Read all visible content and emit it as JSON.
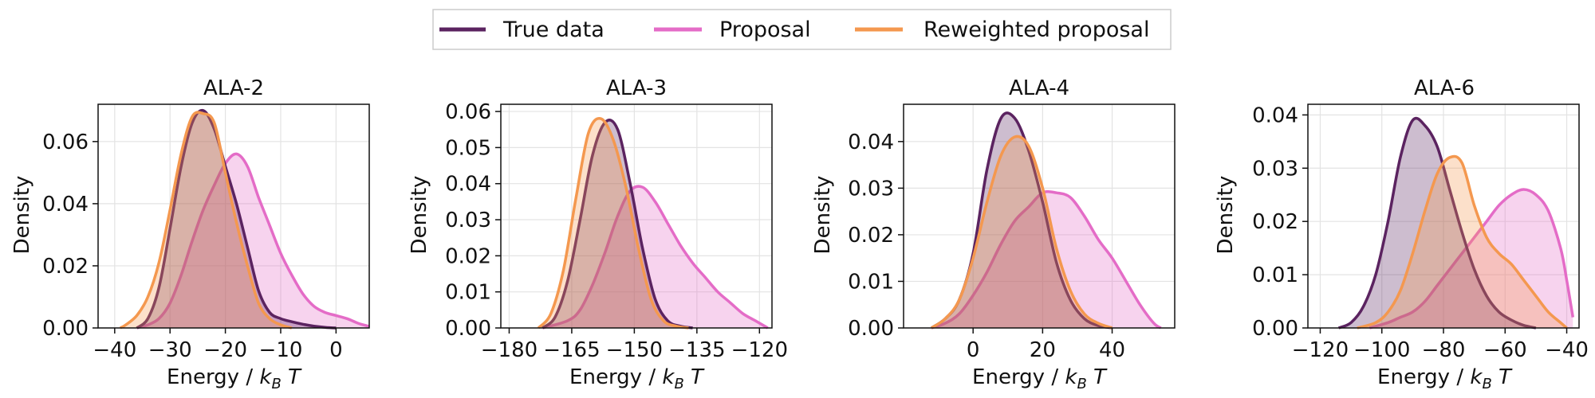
{
  "legend": {
    "entries": [
      {
        "label": "True data",
        "color": "#5b2360"
      },
      {
        "label": "Proposal",
        "color": "#e46cc7"
      },
      {
        "label": "Reweighted proposal",
        "color": "#f4984f"
      }
    ],
    "placement": "top-center"
  },
  "chart_data": [
    {
      "type": "area",
      "title": "ALA-2",
      "xlabel": "Energy / k_B T",
      "ylabel": "Density",
      "xlim": [
        -43,
        6
      ],
      "ylim": [
        0,
        0.072
      ],
      "xticks": [
        -40,
        -30,
        -20,
        -10,
        0
      ],
      "yticks": [
        0,
        0.02,
        0.04,
        0.06
      ],
      "ytick_labels": [
        "0.00",
        "0.02",
        "0.04",
        "0.06"
      ],
      "grid": true,
      "series": [
        {
          "name": "True data",
          "color": "#5b2360",
          "x": [
            -36,
            -34,
            -32,
            -30,
            -28,
            -26,
            -24,
            -22,
            -20,
            -18,
            -16,
            -14,
            -12,
            -10,
            -8,
            -6,
            -4,
            -2,
            0
          ],
          "y": [
            0.0,
            0.003,
            0.013,
            0.032,
            0.052,
            0.066,
            0.07,
            0.064,
            0.052,
            0.04,
            0.026,
            0.012,
            0.005,
            0.003,
            0.002,
            0.0012,
            0.0006,
            0.0002,
            0.0
          ]
        },
        {
          "name": "Proposal",
          "color": "#e46cc7",
          "x": [
            -36,
            -34,
            -32,
            -30,
            -28,
            -26,
            -24,
            -22,
            -20,
            -18,
            -16,
            -14,
            -12,
            -10,
            -8,
            -6,
            -4,
            -2,
            0,
            2,
            4,
            6
          ],
          "y": [
            0.0,
            0.001,
            0.003,
            0.008,
            0.017,
            0.028,
            0.038,
            0.046,
            0.053,
            0.056,
            0.052,
            0.042,
            0.033,
            0.024,
            0.017,
            0.011,
            0.007,
            0.005,
            0.004,
            0.003,
            0.0015,
            0.0005
          ]
        },
        {
          "name": "Reweighted proposal",
          "color": "#f4984f",
          "x": [
            -39,
            -38,
            -36,
            -34,
            -32,
            -30,
            -28,
            -26,
            -24,
            -22,
            -20,
            -18,
            -16,
            -14,
            -12,
            -10,
            -8
          ],
          "y": [
            0.0,
            0.001,
            0.004,
            0.01,
            0.021,
            0.038,
            0.056,
            0.068,
            0.069,
            0.066,
            0.05,
            0.034,
            0.02,
            0.008,
            0.003,
            0.001,
            0.0
          ]
        }
      ]
    },
    {
      "type": "area",
      "title": "ALA-3",
      "xlabel": "Energy / k_B T",
      "ylabel": "Density",
      "xlim": [
        -182,
        -117
      ],
      "ylim": [
        0,
        0.062
      ],
      "xticks": [
        -180,
        -165,
        -150,
        -135,
        -120
      ],
      "yticks": [
        0,
        0.01,
        0.02,
        0.03,
        0.04,
        0.05,
        0.06
      ],
      "ytick_labels": [
        "0.00",
        "0.01",
        "0.02",
        "0.03",
        "0.04",
        "0.05",
        "0.06"
      ],
      "grid": true,
      "series": [
        {
          "name": "True data",
          "color": "#5b2360",
          "x": [
            -172,
            -169,
            -166,
            -163,
            -160,
            -157,
            -154,
            -151,
            -148,
            -145,
            -142,
            -139,
            -136
          ],
          "y": [
            0.0,
            0.003,
            0.013,
            0.03,
            0.048,
            0.057,
            0.055,
            0.04,
            0.022,
            0.008,
            0.002,
            0.0005,
            0.0
          ]
        },
        {
          "name": "Proposal",
          "color": "#e46cc7",
          "x": [
            -172,
            -166,
            -163,
            -160,
            -157,
            -154,
            -151,
            -148,
            -145,
            -142,
            -139,
            -136,
            -133,
            -130,
            -127,
            -124,
            -121,
            -118
          ],
          "y": [
            0.0,
            0.002,
            0.005,
            0.012,
            0.021,
            0.031,
            0.038,
            0.039,
            0.035,
            0.029,
            0.023,
            0.018,
            0.014,
            0.01,
            0.007,
            0.004,
            0.002,
            0.0
          ]
        },
        {
          "name": "Reweighted proposal",
          "color": "#f4984f",
          "x": [
            -173,
            -170,
            -167,
            -164,
            -161,
            -158,
            -155,
            -152,
            -149,
            -146,
            -143,
            -140,
            -137
          ],
          "y": [
            0.0,
            0.004,
            0.016,
            0.036,
            0.054,
            0.058,
            0.052,
            0.039,
            0.022,
            0.008,
            0.002,
            0.0005,
            0.0
          ]
        }
      ]
    },
    {
      "type": "area",
      "title": "ALA-4",
      "xlabel": "Energy / k_B T",
      "ylabel": "Density",
      "xlim": [
        -20,
        58
      ],
      "ylim": [
        0,
        0.048
      ],
      "xticks": [
        0,
        20,
        40
      ],
      "yticks": [
        0,
        0.01,
        0.02,
        0.03,
        0.04
      ],
      "ytick_labels": [
        "0.00",
        "0.01",
        "0.02",
        "0.03",
        "0.04"
      ],
      "grid": true,
      "series": [
        {
          "name": "True data",
          "color": "#5b2360",
          "x": [
            -12,
            -8,
            -4,
            0,
            4,
            8,
            12,
            16,
            20,
            24,
            28,
            32,
            36,
            40
          ],
          "y": [
            0.0,
            0.002,
            0.006,
            0.016,
            0.034,
            0.045,
            0.045,
            0.038,
            0.027,
            0.014,
            0.006,
            0.002,
            0.0005,
            0.0
          ]
        },
        {
          "name": "Proposal",
          "color": "#e46cc7",
          "x": [
            -12,
            -8,
            -4,
            0,
            4,
            8,
            12,
            16,
            20,
            24,
            28,
            32,
            36,
            40,
            44,
            48,
            52,
            54
          ],
          "y": [
            0.0,
            0.001,
            0.003,
            0.007,
            0.012,
            0.018,
            0.023,
            0.026,
            0.029,
            0.029,
            0.028,
            0.024,
            0.019,
            0.015,
            0.01,
            0.005,
            0.001,
            0.0
          ]
        },
        {
          "name": "Reweighted proposal",
          "color": "#f4984f",
          "x": [
            -12,
            -8,
            -4,
            0,
            4,
            8,
            12,
            16,
            20,
            24,
            28,
            32,
            36,
            40
          ],
          "y": [
            0.0,
            0.002,
            0.006,
            0.015,
            0.027,
            0.037,
            0.041,
            0.039,
            0.03,
            0.017,
            0.008,
            0.003,
            0.001,
            0.0
          ]
        }
      ]
    },
    {
      "type": "area",
      "title": "ALA-6",
      "xlabel": "Energy / k_B T",
      "ylabel": "Density",
      "xlim": [
        -124,
        -36
      ],
      "ylim": [
        0,
        0.042
      ],
      "xticks": [
        -120,
        -100,
        -80,
        -60,
        -40
      ],
      "yticks": [
        0,
        0.01,
        0.02,
        0.03,
        0.04
      ],
      "ytick_labels": [
        "0.00",
        "0.01",
        "0.02",
        "0.03",
        "0.04"
      ],
      "grid": true,
      "series": [
        {
          "name": "True data",
          "color": "#5b2360",
          "x": [
            -114,
            -110,
            -106,
            -102,
            -98,
            -94,
            -90,
            -86,
            -82,
            -78,
            -74,
            -70,
            -66,
            -62,
            -58,
            -54,
            -50
          ],
          "y": [
            0.0,
            0.001,
            0.004,
            0.01,
            0.02,
            0.032,
            0.039,
            0.038,
            0.034,
            0.026,
            0.018,
            0.011,
            0.006,
            0.003,
            0.0015,
            0.0005,
            0.0
          ]
        },
        {
          "name": "Proposal",
          "color": "#e46cc7",
          "x": [
            -104,
            -98,
            -94,
            -90,
            -86,
            -82,
            -78,
            -74,
            -70,
            -66,
            -62,
            -58,
            -54,
            -50,
            -46,
            -42,
            -40,
            -38
          ],
          "y": [
            0.0,
            0.001,
            0.002,
            0.003,
            0.005,
            0.008,
            0.011,
            0.014,
            0.017,
            0.02,
            0.023,
            0.025,
            0.026,
            0.025,
            0.022,
            0.015,
            0.009,
            0.002
          ]
        },
        {
          "name": "Reweighted proposal",
          "color": "#f4984f",
          "x": [
            -108,
            -102,
            -98,
            -94,
            -90,
            -86,
            -82,
            -78,
            -74,
            -70,
            -66,
            -62,
            -58,
            -54,
            -50,
            -46,
            -42,
            -40
          ],
          "y": [
            0.0,
            0.001,
            0.003,
            0.007,
            0.014,
            0.022,
            0.029,
            0.032,
            0.031,
            0.023,
            0.017,
            0.014,
            0.012,
            0.009,
            0.006,
            0.003,
            0.001,
            0.0
          ]
        }
      ]
    }
  ]
}
